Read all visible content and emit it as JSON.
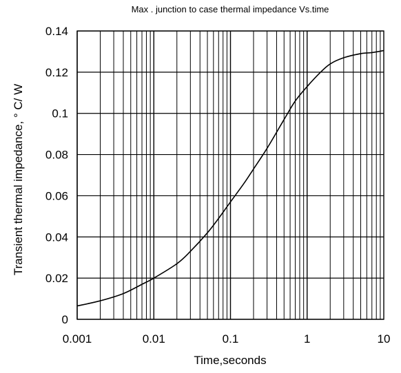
{
  "chart_data": {
    "type": "line",
    "title": "Max . junction to case thermal impedance Vs.time",
    "xlabel": "Time,seconds",
    "ylabel": "Transient thermal impedance, ° C/ W",
    "x_scale": "log",
    "xlim": [
      0.001,
      10
    ],
    "ylim": [
      0,
      0.14
    ],
    "x_ticks": [
      0.001,
      0.01,
      0.1,
      1,
      10
    ],
    "x_tick_labels": [
      "0.001",
      "0.01",
      "0.1",
      "1",
      "10"
    ],
    "y_ticks": [
      0,
      0.02,
      0.04,
      0.06,
      0.08,
      0.1,
      0.12,
      0.14
    ],
    "y_tick_labels": [
      "0",
      "0.02",
      "0.04",
      "0.06",
      "0.08",
      "0.1",
      "0.12",
      "0.14"
    ],
    "grid": true,
    "legend": "none",
    "colors": {
      "line": "#000000",
      "grid": "#000000"
    },
    "series": [
      {
        "x": [
          0.001,
          0.002,
          0.004,
          0.007,
          0.01,
          0.02,
          0.03,
          0.05,
          0.07,
          0.1,
          0.15,
          0.2,
          0.3,
          0.5,
          0.7,
          1,
          1.5,
          2,
          3,
          5,
          7,
          10
        ],
        "y": [
          0.0065,
          0.009,
          0.0125,
          0.017,
          0.02,
          0.027,
          0.033,
          0.042,
          0.049,
          0.057,
          0.066,
          0.073,
          0.083,
          0.097,
          0.106,
          0.113,
          0.12,
          0.124,
          0.127,
          0.129,
          0.1295,
          0.1305
        ]
      }
    ]
  }
}
